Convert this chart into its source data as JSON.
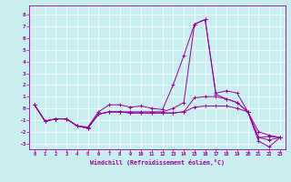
{
  "xlabel": "Windchill (Refroidissement éolien,°C)",
  "x_ticks": [
    0,
    1,
    2,
    3,
    4,
    5,
    6,
    7,
    8,
    9,
    10,
    11,
    12,
    13,
    14,
    15,
    16,
    17,
    18,
    19,
    20,
    21,
    22,
    23
  ],
  "ylim": [
    -3.5,
    8.8
  ],
  "xlim": [
    -0.5,
    23.5
  ],
  "yticks": [
    -3,
    -2,
    -1,
    0,
    1,
    2,
    3,
    4,
    5,
    6,
    7,
    8
  ],
  "color": "#990099",
  "bg_color": "#c8eef0",
  "line1_x": [
    0,
    1,
    2,
    3,
    4,
    5,
    6,
    7,
    8,
    9,
    10,
    11,
    12,
    13,
    14,
    15,
    16,
    17,
    18,
    19,
    20,
    21,
    22,
    23
  ],
  "line1_y": [
    0.3,
    -1.1,
    -0.9,
    -0.9,
    -1.5,
    -1.6,
    -0.3,
    0.3,
    0.3,
    0.1,
    0.2,
    0.0,
    -0.1,
    2.0,
    4.5,
    7.2,
    7.6,
    1.3,
    1.5,
    1.3,
    -0.3,
    -2.8,
    -3.3,
    -2.5
  ],
  "line2_x": [
    0,
    1,
    2,
    3,
    4,
    5,
    6,
    7,
    8,
    9,
    10,
    11,
    12,
    13,
    14,
    15,
    16,
    17,
    18,
    19,
    20,
    21,
    22,
    23
  ],
  "line2_y": [
    0.3,
    -1.1,
    -0.9,
    -0.9,
    -1.5,
    -1.7,
    -0.5,
    -0.3,
    -0.3,
    -0.3,
    -0.3,
    -0.3,
    -0.3,
    0.0,
    0.5,
    7.2,
    7.6,
    1.2,
    0.8,
    0.5,
    -0.3,
    -2.5,
    -2.7,
    -2.5
  ],
  "line3_x": [
    0,
    1,
    2,
    3,
    4,
    5,
    6,
    7,
    8,
    9,
    10,
    11,
    12,
    13,
    14,
    15,
    16,
    17,
    18,
    19,
    20,
    21,
    22,
    23
  ],
  "line3_y": [
    0.3,
    -1.1,
    -0.9,
    -0.9,
    -1.5,
    -1.7,
    -0.5,
    -0.3,
    -0.3,
    -0.4,
    -0.4,
    -0.4,
    -0.4,
    -0.4,
    -0.3,
    0.9,
    1.0,
    1.0,
    0.8,
    0.5,
    -0.3,
    -2.5,
    -2.4,
    -2.5
  ],
  "line4_x": [
    0,
    1,
    2,
    3,
    4,
    5,
    6,
    7,
    8,
    9,
    10,
    11,
    12,
    13,
    14,
    15,
    16,
    17,
    18,
    19,
    20,
    21,
    22,
    23
  ],
  "line4_y": [
    0.3,
    -1.1,
    -0.9,
    -0.9,
    -1.5,
    -1.7,
    -0.5,
    -0.3,
    -0.3,
    -0.4,
    -0.4,
    -0.4,
    -0.4,
    -0.4,
    -0.3,
    0.1,
    0.2,
    0.2,
    0.2,
    0.0,
    -0.3,
    -2.0,
    -2.3,
    -2.5
  ]
}
